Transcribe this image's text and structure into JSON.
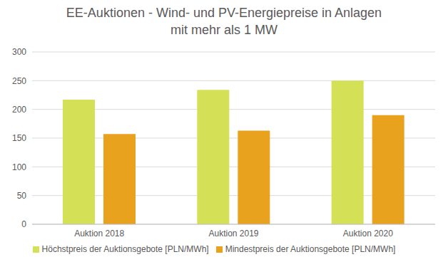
{
  "chart_data": {
    "type": "bar",
    "title": "EE-Auktionen - Wind- und PV-Energiepreise in Anlagen mit mehr als 1 MW",
    "categories": [
      "Auktion 2018",
      "Auktion 2019",
      "Auktion 2020"
    ],
    "series": [
      {
        "name": "Höchstpreis der Auktionsgebote [PLN/MWh]",
        "color": "#d4e157",
        "values": [
          217,
          234,
          250
        ]
      },
      {
        "name": "Mindestpreis der Auktionsgebote [PLN/MWh]",
        "color": "#e8a21e",
        "values": [
          157,
          163,
          190
        ]
      }
    ],
    "ylim": [
      0,
      300
    ],
    "yticks": [
      0,
      50,
      100,
      150,
      200,
      250,
      300
    ],
    "grid": true,
    "legend": "bottom"
  }
}
